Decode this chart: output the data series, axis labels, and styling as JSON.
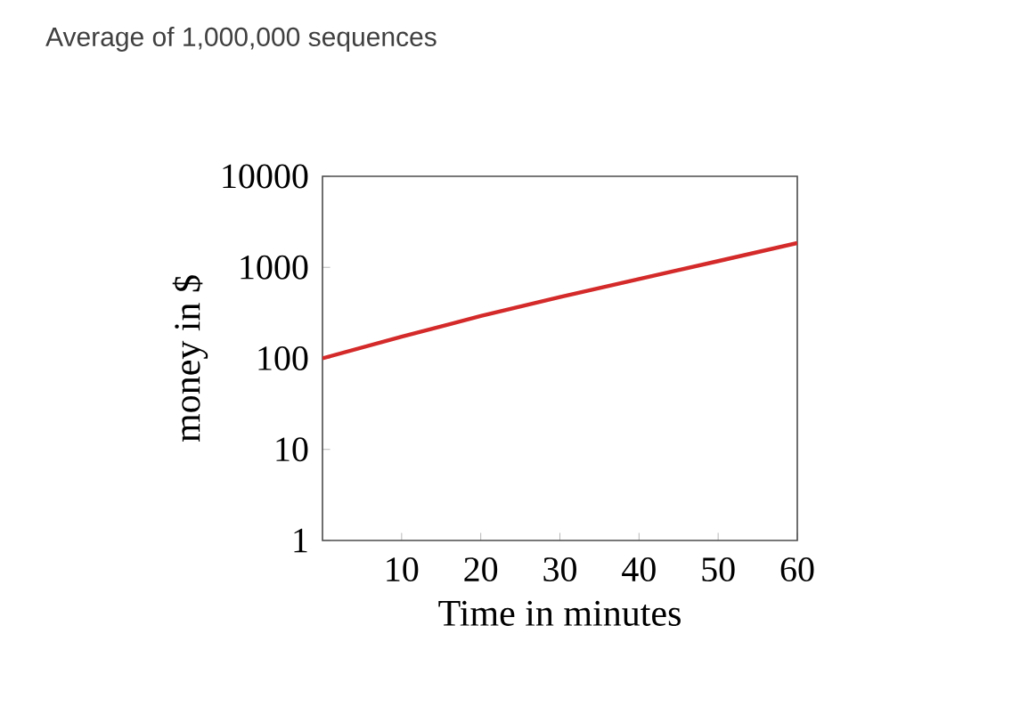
{
  "chart_data": {
    "type": "line",
    "title": "Average of 1,000,000 sequences",
    "xlabel": "Time in minutes",
    "ylabel": "money in $",
    "x": [
      0,
      10,
      20,
      30,
      40,
      50,
      60
    ],
    "series": [
      {
        "color": "#d42a2a",
        "values": [
          100,
          173,
          292,
          471,
          745,
          1170,
          1850
        ]
      }
    ],
    "xlim": [
      0,
      60
    ],
    "ylim": [
      1,
      10000
    ],
    "xticks": [
      10,
      20,
      30,
      40,
      50,
      60
    ],
    "yticks": [
      1,
      10,
      100,
      1000,
      10000
    ],
    "log": "y",
    "grid": false,
    "marker": "none",
    "line_style": "solid"
  }
}
